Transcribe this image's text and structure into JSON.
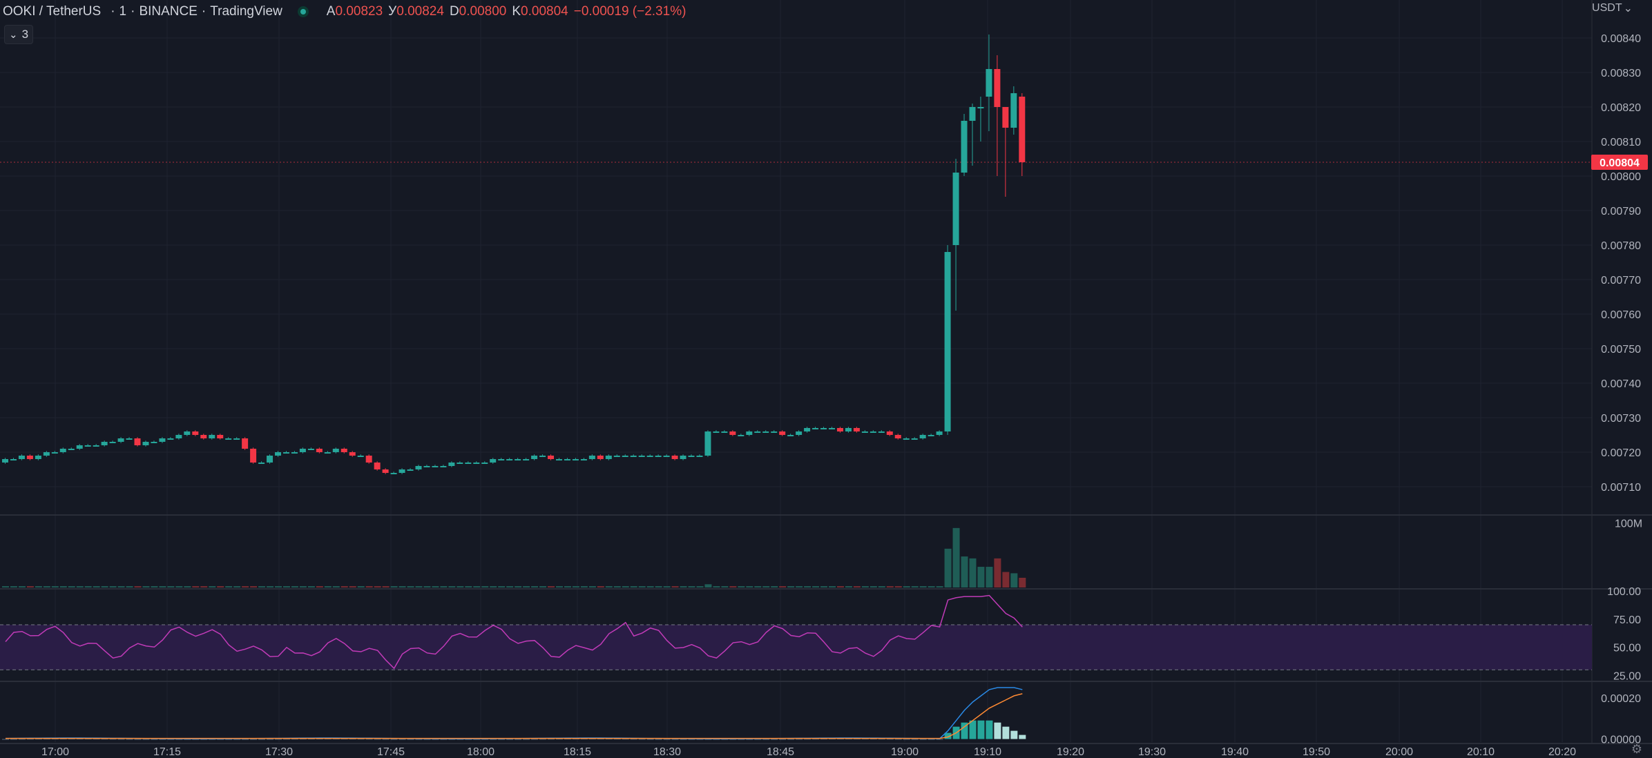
{
  "legend": {
    "symbol": "OOKI / TetherUS",
    "interval": "1",
    "exchange": "BINANCE",
    "provider": "TradingView",
    "open_label": "А",
    "open_value": "0.00823",
    "high_label": "У",
    "high_value": "0.00824",
    "low_label": "D",
    "low_value": "0.00800",
    "close_label": "K",
    "close_value": "0.00804",
    "change": "−0.00019 (−2.31%)"
  },
  "indicator_toggle": {
    "count": "3"
  },
  "currency": "USDT",
  "current_price_label": "0.00804",
  "colors": {
    "background": "#151924",
    "up": "#26a69a",
    "down": "#f23645",
    "grid": "#1f2330",
    "rsi_line": "#c13bb8",
    "rsi_band": "#2a1d46",
    "macd": "#2a8ae6",
    "signal": "#ff8a33"
  },
  "chart_data": {
    "type": "candlestick",
    "price_axis": {
      "ticks": [
        "0.00840",
        "0.00830",
        "0.00820",
        "0.00810",
        "0.00800",
        "0.00790",
        "0.00780",
        "0.00770",
        "0.00760",
        "0.00750",
        "0.00740",
        "0.00730",
        "0.00720",
        "0.00710"
      ],
      "ylim": [
        0.00702,
        0.00845
      ]
    },
    "time_axis": {
      "ticks": [
        "17:00",
        "17:15",
        "17:30",
        "17:45",
        "18:00",
        "18:15",
        "18:30",
        "18:45",
        "19:00",
        "19:10",
        "19:20",
        "19:30",
        "19:40",
        "19:50",
        "20:00",
        "20:10",
        "20:20"
      ]
    },
    "volume_axis": {
      "ticks": [
        "100M"
      ]
    },
    "rsi_axis": {
      "ticks": [
        "100.00",
        "75.00",
        "50.00",
        "25.00"
      ],
      "ylim": [
        21,
        100
      ],
      "band": [
        30,
        70
      ]
    },
    "macd_axis": {
      "ticks": [
        "0.00020",
        "0.00000"
      ],
      "ylim": [
        -1.5e-05,
        0.00027
      ]
    }
  }
}
